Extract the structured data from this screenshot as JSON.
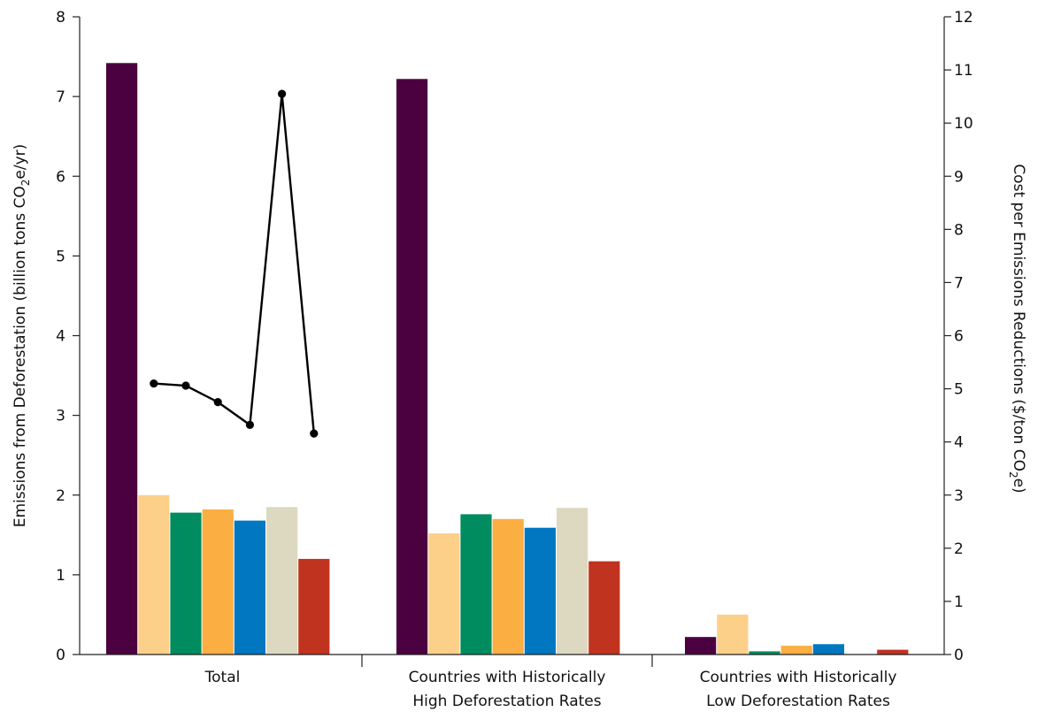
{
  "chart_data": {
    "type": "bar",
    "categories": [
      [
        "Total"
      ],
      [
        "Countries with Historically",
        "High Deforestation Rates"
      ],
      [
        "Countries with Historically",
        "Low Deforestation Rates"
      ]
    ],
    "series": [
      {
        "color": "#4b0040",
        "values": [
          7.42,
          7.22,
          0.22
        ]
      },
      {
        "color": "#fdd08a",
        "values": [
          2.0,
          1.52,
          0.5
        ]
      },
      {
        "color": "#008c5f",
        "values": [
          1.78,
          1.76,
          0.04
        ]
      },
      {
        "color": "#fbae42",
        "values": [
          1.82,
          1.7,
          0.11
        ]
      },
      {
        "color": "#0077c0",
        "values": [
          1.68,
          1.59,
          0.13
        ]
      },
      {
        "color": "#ddd8c0",
        "values": [
          1.85,
          1.84,
          0.0
        ]
      },
      {
        "color": "#c0331f",
        "values": [
          1.2,
          1.17,
          0.06
        ]
      }
    ],
    "cost_line": {
      "category": 0,
      "series_index": [
        1,
        2,
        3,
        4,
        5,
        6
      ],
      "values": [
        5.1,
        5.06,
        4.75,
        4.32,
        10.55,
        4.16
      ]
    },
    "y_left": {
      "label_parts": [
        "Emissions from Deforestation (billion tons CO",
        "2",
        "e/yr)"
      ],
      "ylim": [
        0,
        8
      ],
      "ticks": [
        "0",
        "1",
        "2",
        "3",
        "4",
        "5",
        "6",
        "7",
        "8"
      ]
    },
    "y_right": {
      "label_parts": [
        "Cost per Emissions Reductions ($/ton CO",
        "2",
        "e)"
      ],
      "ylim": [
        0,
        12
      ],
      "ticks": [
        "0",
        "1",
        "2",
        "3",
        "4",
        "5",
        "6",
        "7",
        "8",
        "9",
        "10",
        "11",
        "12"
      ]
    },
    "grid": false,
    "legend": "none"
  }
}
